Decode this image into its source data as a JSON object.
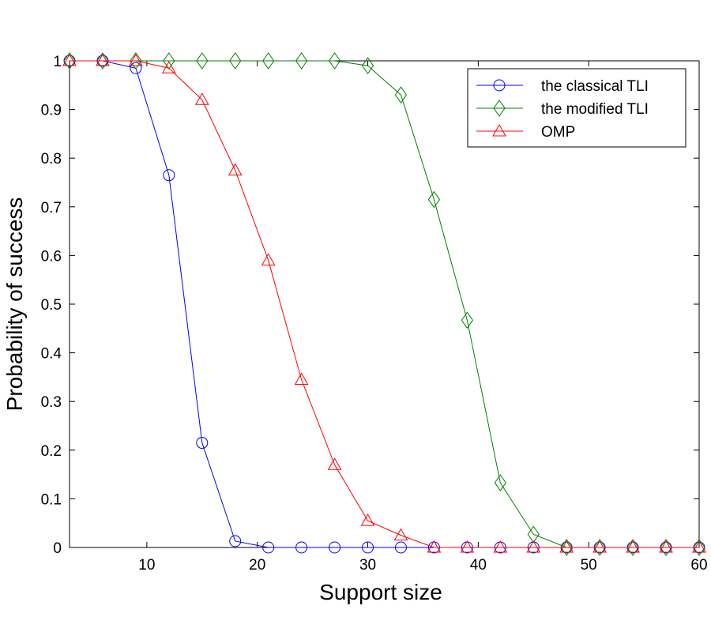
{
  "chart_data": {
    "type": "line",
    "title": "",
    "xlabel": "Support size",
    "ylabel": "Probability of success",
    "xlim": [
      3,
      60
    ],
    "ylim": [
      0,
      1
    ],
    "xticks": [
      10,
      20,
      30,
      40,
      50,
      60
    ],
    "yticks": [
      0,
      0.1,
      0.2,
      0.3,
      0.4,
      0.5,
      0.6,
      0.7,
      0.8,
      0.9,
      1
    ],
    "ytick_labels": [
      "0",
      "0.1",
      "0.2",
      "0.3",
      "0.4",
      "0.5",
      "0.6",
      "0.7",
      "0.8",
      "0.9",
      "1"
    ],
    "grid": false,
    "legend_position": "top-right",
    "x": [
      3,
      6,
      9,
      12,
      15,
      18,
      21,
      24,
      27,
      30,
      33,
      36,
      39,
      42,
      45,
      48,
      51,
      54,
      57,
      60
    ],
    "series": [
      {
        "name": "the classical TLI",
        "color": "#0000ff",
        "marker": "circle",
        "values": [
          1,
          1,
          0.985,
          0.765,
          0.215,
          0.013,
          0,
          0,
          0,
          0,
          0,
          0,
          0,
          0,
          0,
          0,
          0,
          0,
          0,
          0
        ]
      },
      {
        "name": "the modified TLI",
        "color": "#008000",
        "marker": "diamond",
        "values": [
          1,
          1,
          1,
          1,
          1,
          1,
          1,
          1,
          1,
          0.99,
          0.93,
          0.715,
          0.467,
          0.133,
          0.027,
          0,
          0,
          0,
          0,
          0
        ]
      },
      {
        "name": "OMP",
        "color": "#ff0000",
        "marker": "triangle",
        "values": [
          1,
          1,
          1,
          0.985,
          0.92,
          0.775,
          0.59,
          0.345,
          0.17,
          0.055,
          0.025,
          0,
          0,
          0,
          0,
          0,
          0,
          0,
          0,
          0
        ]
      }
    ]
  }
}
